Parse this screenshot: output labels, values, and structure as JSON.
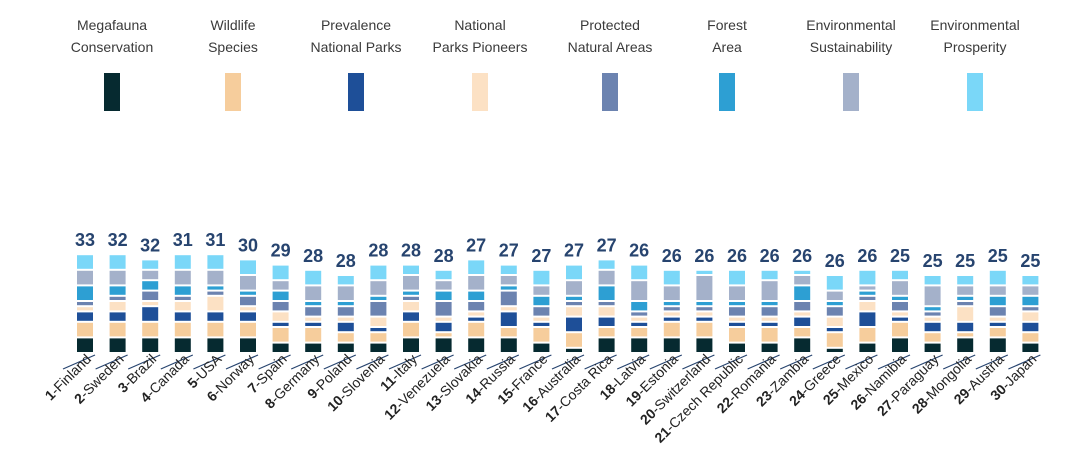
{
  "chart_data": {
    "type": "bar",
    "stacked": true,
    "title": "",
    "xlabel": "",
    "ylabel": "",
    "legend_position": "top",
    "series": [
      {
        "name": "Megafauna Conservation",
        "label_lines": [
          "Megafauna",
          "Conservation"
        ],
        "color": "#062a30"
      },
      {
        "name": "Wildlife Species",
        "label_lines": [
          "Wildlife",
          "Species"
        ],
        "color": "#f6cd9c"
      },
      {
        "name": "Prevalence National Parks",
        "label_lines": [
          "Prevalence",
          "National Parks"
        ],
        "color": "#1e4f98"
      },
      {
        "name": "National Parks Pioneers",
        "label_lines": [
          "National",
          "Parks Pioneers"
        ],
        "color": "#fce1c4"
      },
      {
        "name": "Protected Natural Areas",
        "label_lines": [
          "Protected",
          "Natural Areas"
        ],
        "color": "#6c83b0"
      },
      {
        "name": "Forest Area",
        "label_lines": [
          "Forest",
          "Area"
        ],
        "color": "#2d9fd3"
      },
      {
        "name": "Environmental Sustainability",
        "label_lines": [
          "Environmental",
          "Sustainability"
        ],
        "color": "#a4b1ca"
      },
      {
        "name": "Environmental Prosperity",
        "label_lines": [
          "Environmental",
          "Prosperity"
        ],
        "color": "#7ad7f8"
      }
    ],
    "categories": [
      {
        "rank": "1",
        "name": "Finland",
        "total": "33",
        "segments": [
          3,
          3,
          2,
          1,
          1,
          3,
          3,
          3
        ]
      },
      {
        "rank": "2",
        "name": "Sweden",
        "total": "32",
        "segments": [
          3,
          3,
          2,
          2,
          1,
          2,
          3,
          3
        ]
      },
      {
        "rank": "3",
        "name": "Brazil",
        "total": "32",
        "segments": [
          3,
          3,
          3,
          1,
          2,
          2,
          2,
          2
        ]
      },
      {
        "rank": "4",
        "name": "Canada",
        "total": "31",
        "segments": [
          3,
          3,
          2,
          2,
          1,
          2,
          3,
          3
        ]
      },
      {
        "rank": "5",
        "name": "USA",
        "total": "31",
        "segments": [
          3,
          3,
          2,
          3,
          1,
          1,
          3,
          3
        ]
      },
      {
        "rank": "6",
        "name": "Norway",
        "total": "30",
        "segments": [
          3,
          3,
          2,
          1,
          2,
          1,
          3,
          3
        ]
      },
      {
        "rank": "7",
        "name": "Spain",
        "total": "29",
        "segments": [
          2,
          3,
          1,
          2,
          2,
          2,
          2,
          3
        ]
      },
      {
        "rank": "8",
        "name": "Germany",
        "total": "28",
        "segments": [
          2,
          3,
          1,
          1,
          2,
          1,
          3,
          3
        ]
      },
      {
        "rank": "9",
        "name": "Poland",
        "total": "28",
        "segments": [
          2,
          2,
          2,
          1,
          2,
          1,
          3,
          2
        ]
      },
      {
        "rank": "10",
        "name": "Slovenia",
        "total": "28",
        "segments": [
          2,
          2,
          1,
          2,
          3,
          1,
          3,
          3
        ]
      },
      {
        "rank": "11",
        "name": "Italy",
        "total": "28",
        "segments": [
          3,
          3,
          2,
          2,
          1,
          1,
          3,
          2
        ]
      },
      {
        "rank": "12",
        "name": "Venezuela",
        "total": "28",
        "segments": [
          3,
          1,
          2,
          1,
          3,
          2,
          2,
          2
        ]
      },
      {
        "rank": "13",
        "name": "Slovakia",
        "total": "27",
        "segments": [
          3,
          3,
          1,
          1,
          2,
          2,
          3,
          3
        ]
      },
      {
        "rank": "14",
        "name": "Russia",
        "total": "27",
        "segments": [
          3,
          2,
          3,
          1,
          3,
          1,
          2,
          2
        ]
      },
      {
        "rank": "15",
        "name": "France",
        "total": "27",
        "segments": [
          2,
          3,
          1,
          1,
          2,
          2,
          2,
          3
        ]
      },
      {
        "rank": "16",
        "name": "Australia",
        "total": "27",
        "segments": [
          1,
          3,
          3,
          2,
          1,
          1,
          3,
          3
        ]
      },
      {
        "rank": "17",
        "name": "Costa Rica",
        "total": "27",
        "segments": [
          3,
          2,
          2,
          2,
          1,
          3,
          3,
          2
        ]
      },
      {
        "rank": "18",
        "name": "Latvia",
        "total": "26",
        "segments": [
          3,
          2,
          1,
          1,
          1,
          2,
          4,
          3
        ]
      },
      {
        "rank": "19",
        "name": "Estonia",
        "total": "26",
        "segments": [
          3,
          3,
          1,
          1,
          1,
          1,
          3,
          3
        ]
      },
      {
        "rank": "20",
        "name": "Switzerland",
        "total": "26",
        "segments": [
          3,
          3,
          1,
          1,
          1,
          1,
          5,
          1
        ]
      },
      {
        "rank": "21",
        "name": "Czech Republic",
        "total": "26",
        "segments": [
          2,
          3,
          1,
          1,
          2,
          1,
          3,
          3
        ]
      },
      {
        "rank": "22",
        "name": "Romania",
        "total": "26",
        "segments": [
          2,
          3,
          1,
          1,
          2,
          1,
          4,
          2
        ]
      },
      {
        "rank": "23",
        "name": "Zambia",
        "total": "26",
        "segments": [
          3,
          2,
          2,
          1,
          2,
          3,
          2,
          1
        ]
      },
      {
        "rank": "24",
        "name": "Greece",
        "total": "26",
        "segments": [
          1,
          3,
          1,
          2,
          2,
          1,
          2,
          3
        ]
      },
      {
        "rank": "25",
        "name": "Mexico",
        "total": "26",
        "segments": [
          2,
          3,
          3,
          2,
          1,
          1,
          1,
          3
        ]
      },
      {
        "rank": "26",
        "name": "Namibia",
        "total": "25",
        "segments": [
          3,
          3,
          1,
          1,
          2,
          1,
          3,
          2
        ]
      },
      {
        "rank": "27",
        "name": "Paraguay",
        "total": "25",
        "segments": [
          2,
          2,
          2,
          1,
          1,
          1,
          4,
          2
        ]
      },
      {
        "rank": "28",
        "name": "Mongolia",
        "total": "25",
        "segments": [
          3,
          1,
          2,
          3,
          1,
          1,
          2,
          2
        ]
      },
      {
        "rank": "29",
        "name": "Austria",
        "total": "25",
        "segments": [
          3,
          2,
          1,
          1,
          2,
          2,
          2,
          3
        ]
      },
      {
        "rank": "30",
        "name": "Japan",
        "total": "25",
        "segments": [
          2,
          2,
          2,
          2,
          1,
          2,
          2,
          2
        ]
      }
    ]
  }
}
